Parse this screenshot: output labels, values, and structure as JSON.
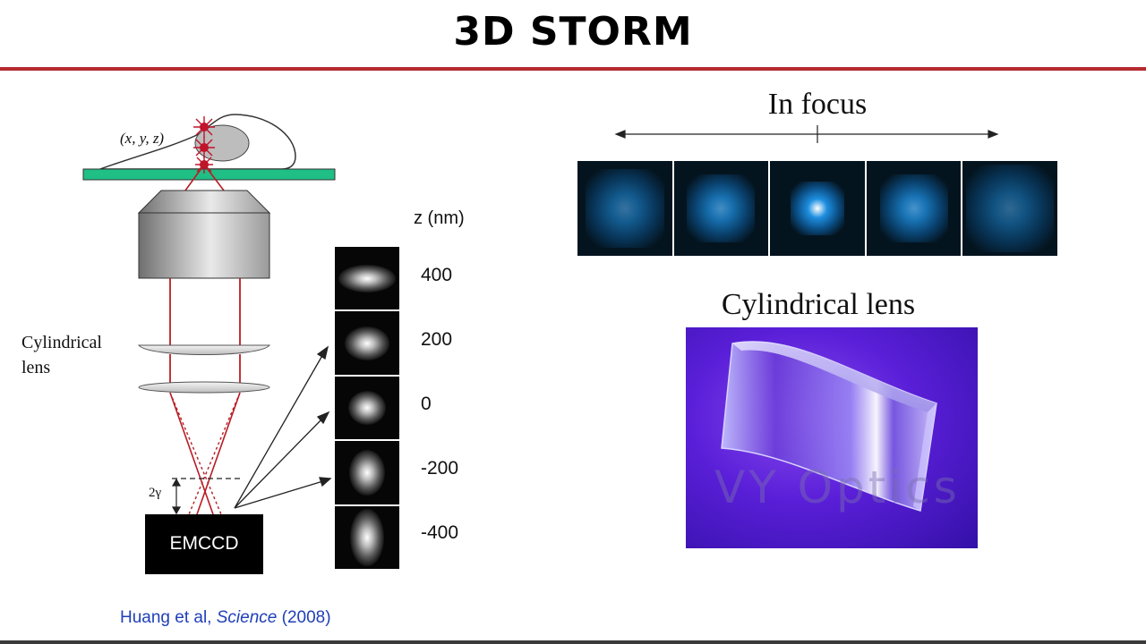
{
  "slide": {
    "title": "3D STORM",
    "citation": {
      "authors": "Huang et al, ",
      "journal": "Science",
      "year": " (2008)"
    }
  },
  "diagram": {
    "coord_label": "(x, y, z)",
    "cyl_lens_label_line1": "Cylindrical",
    "cyl_lens_label_line2": "lens",
    "gamma_label": "2γ",
    "detector_label": "EMCCD",
    "colors": {
      "sample_stage": "#1fbf86",
      "beam": "#b81d24",
      "emitter": "#c0142a"
    }
  },
  "z_calibration": {
    "header": "z (nm)",
    "levels": [
      {
        "z": "400",
        "sx": 1.0,
        "sy": 0.35
      },
      {
        "z": "200",
        "sx": 0.7,
        "sy": 0.5
      },
      {
        "z": "0",
        "sx": 0.5,
        "sy": 0.5
      },
      {
        "z": "-200",
        "sx": 0.45,
        "sy": 0.8
      },
      {
        "z": "-400",
        "sx": 0.4,
        "sy": 1.1
      }
    ]
  },
  "focus_panel": {
    "label": "In focus",
    "frames": [
      {
        "intensity": 0.35,
        "size": 1.2
      },
      {
        "intensity": 0.6,
        "size": 0.9
      },
      {
        "intensity": 1.0,
        "size": 0.55
      },
      {
        "intensity": 0.65,
        "size": 0.9
      },
      {
        "intensity": 0.25,
        "size": 1.4
      }
    ]
  },
  "lens_photo": {
    "label": "Cylindrical lens",
    "watermark": "VY Optics"
  }
}
